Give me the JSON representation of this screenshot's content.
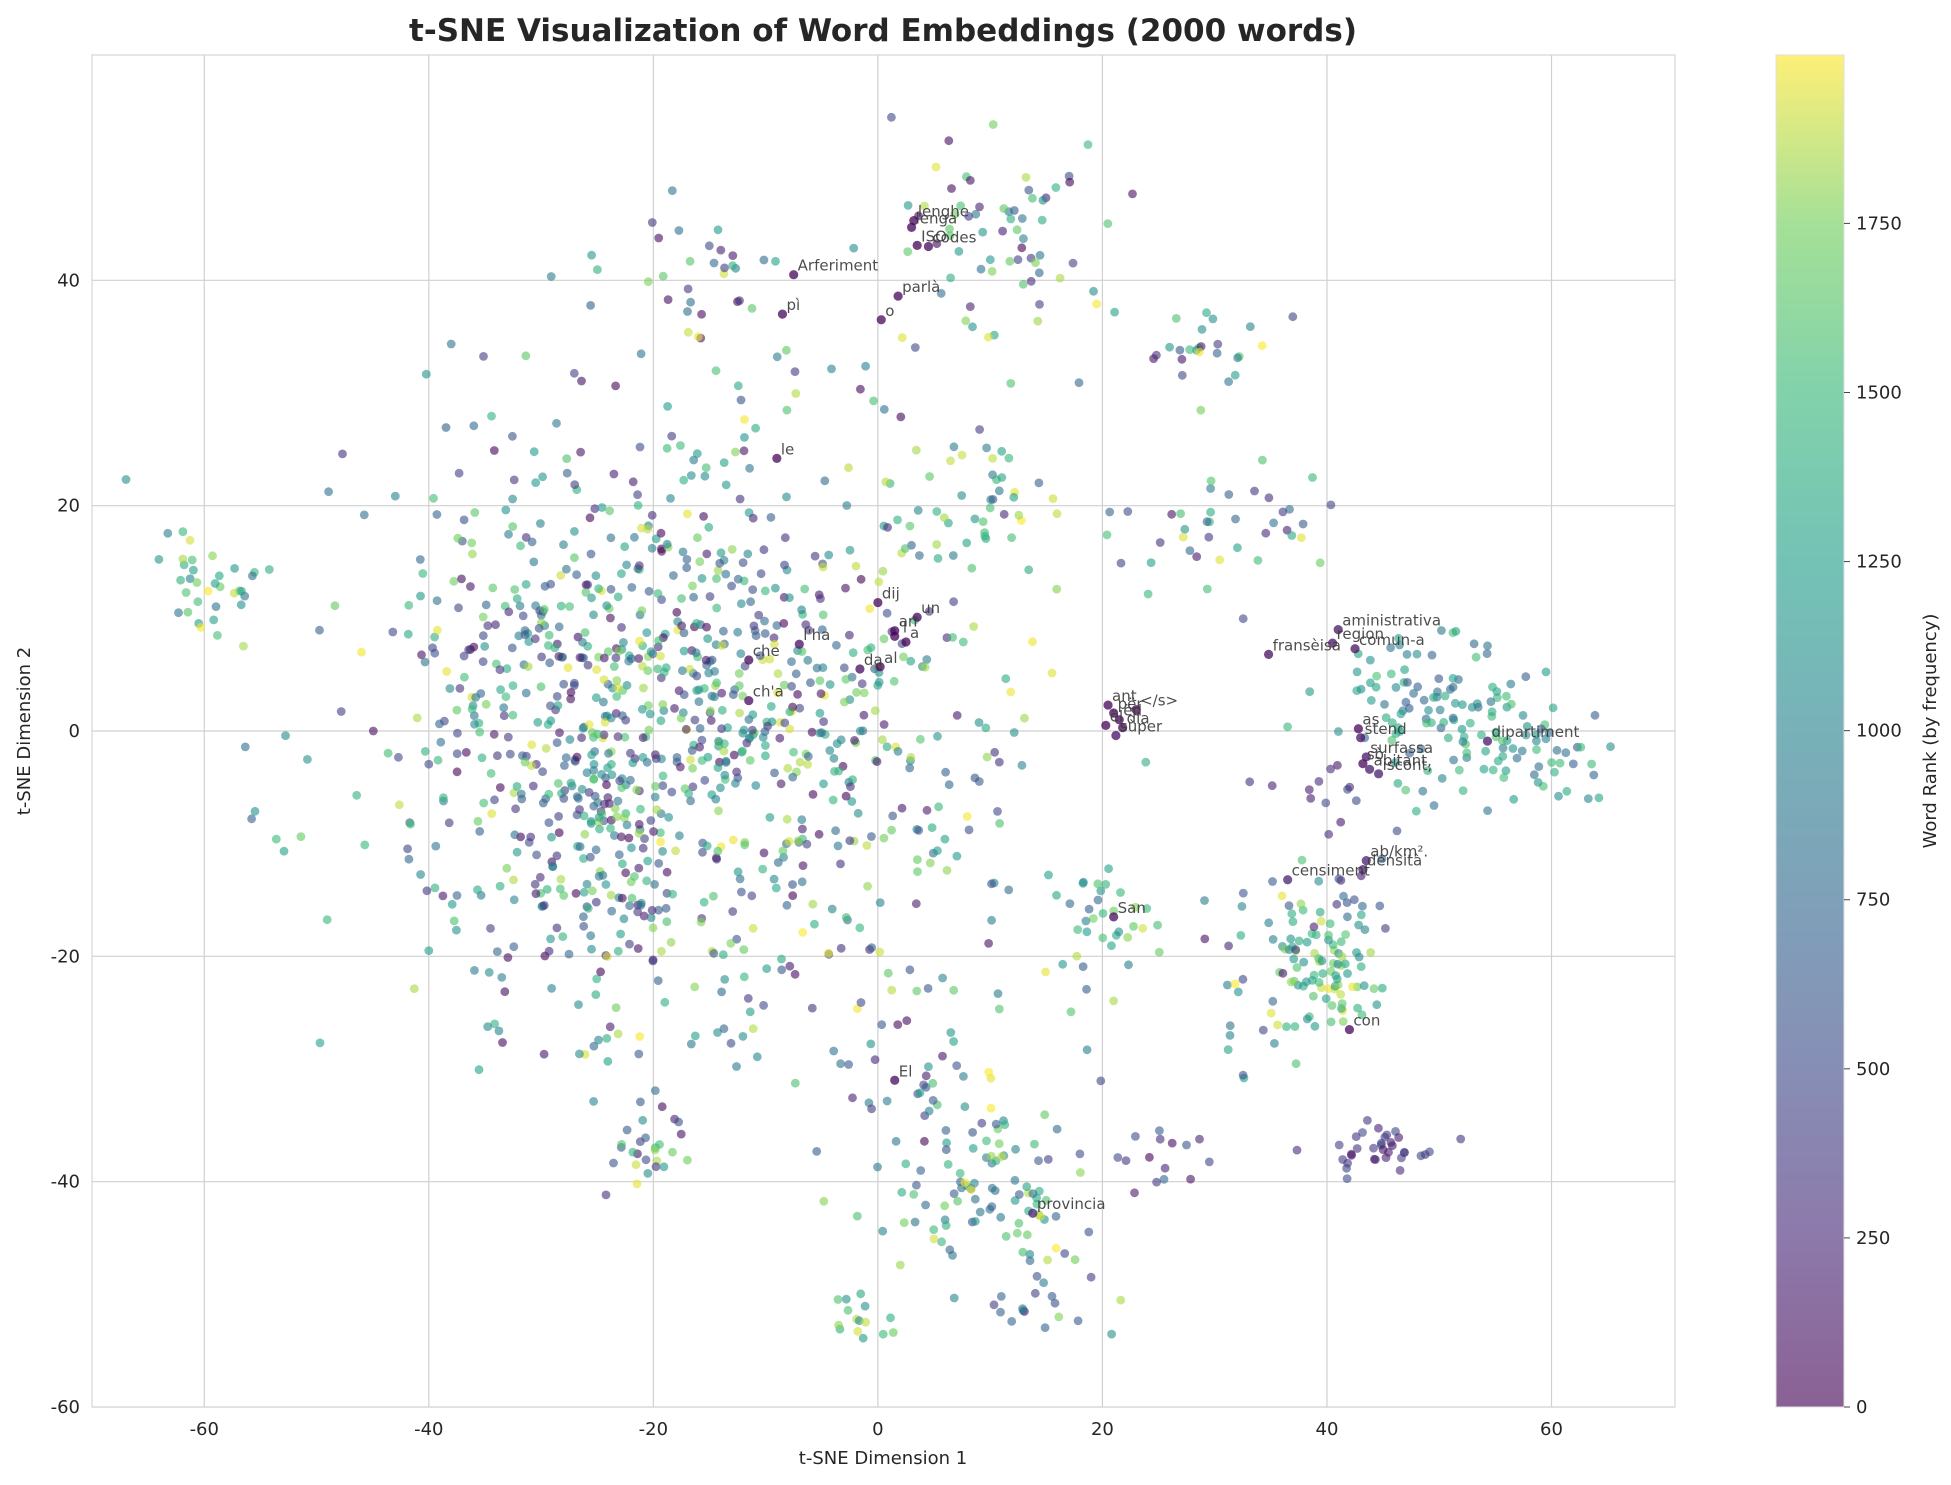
{
  "chart_data": {
    "type": "scatter",
    "title": "t-SNE Visualization of Word Embeddings (2000 words)",
    "xlabel": "t-SNE Dimension 1",
    "ylabel": "t-SNE Dimension 2",
    "xlim": [
      -70,
      71
    ],
    "ylim": [
      -60,
      60
    ],
    "xticks": [
      -60,
      -40,
      -20,
      0,
      20,
      40,
      60
    ],
    "yticks": [
      -60,
      -40,
      -20,
      0,
      20,
      40
    ],
    "grid": true,
    "point_count": 2000,
    "colormap": "viridis",
    "point_alpha": 0.6,
    "colorbar": {
      "label": "Word Rank (by frequency)",
      "range": [
        0,
        1999
      ],
      "ticks": [
        0,
        250,
        500,
        750,
        1000,
        1250,
        1500,
        1750
      ]
    },
    "labeled_points": [
      {
        "word": "Arferiment",
        "x": -7.5,
        "y": 40.5,
        "rank": 30
      },
      {
        "word": "lenghe",
        "x": 3.2,
        "y": 45.3,
        "rank": 20
      },
      {
        "word": "lenga",
        "x": 3.0,
        "y": 44.7,
        "rank": 15
      },
      {
        "word": "ISO",
        "x": 3.5,
        "y": 43.1,
        "rank": 10
      },
      {
        "word": "codes",
        "x": 4.5,
        "y": 43.0,
        "rank": 40
      },
      {
        "word": "parlà",
        "x": 1.8,
        "y": 38.6,
        "rank": 25
      },
      {
        "word": "pì",
        "x": -8.5,
        "y": 37.0,
        "rank": 50
      },
      {
        "word": "o",
        "x": 0.3,
        "y": 36.5,
        "rank": 60
      },
      {
        "word": "le",
        "x": -9.0,
        "y": 24.2,
        "rank": 45
      },
      {
        "word": "dij",
        "x": 0.0,
        "y": 11.4,
        "rank": 35
      },
      {
        "word": "un",
        "x": 3.5,
        "y": 10.1,
        "rank": 30
      },
      {
        "word": "an",
        "x": 1.5,
        "y": 8.9,
        "rank": 20
      },
      {
        "word": "'l",
        "x": 1.5,
        "y": 8.4,
        "rank": 12
      },
      {
        "word": "a",
        "x": 2.5,
        "y": 7.9,
        "rank": 8
      },
      {
        "word": "l'ha",
        "x": -7.0,
        "y": 7.7,
        "rank": 80
      },
      {
        "word": "che",
        "x": -11.5,
        "y": 6.3,
        "rank": 28
      },
      {
        "word": "da",
        "x": -1.6,
        "y": 5.5,
        "rank": 55
      },
      {
        "word": "al",
        "x": 0.2,
        "y": 5.7,
        "rank": 22
      },
      {
        "word": "ch'a",
        "x": -11.5,
        "y": 2.7,
        "rank": 65
      },
      {
        "word": "ant",
        "x": 20.5,
        "y": 2.3,
        "rank": 18
      },
      {
        "word": "për",
        "x": 21.0,
        "y": 1.6,
        "rank": 14
      },
      {
        "word": "</s>",
        "x": 23.0,
        "y": 1.9,
        "rank": 5
      },
      {
        "word": "ëd",
        "x": 21.5,
        "y": 1.0,
        "rank": 6
      },
      {
        "word": "ël",
        "x": 20.3,
        "y": 0.5,
        "rank": 11
      },
      {
        "word": "dla",
        "x": 21.8,
        "y": 0.3,
        "rank": 24
      },
      {
        "word": "sùper",
        "x": 21.2,
        "y": -0.4,
        "rank": 90
      },
      {
        "word": "aministrativa",
        "x": 41.0,
        "y": 9.0,
        "rank": 120
      },
      {
        "word": "region",
        "x": 40.5,
        "y": 7.8,
        "rank": 110
      },
      {
        "word": "comun-a",
        "x": 42.5,
        "y": 7.3,
        "rank": 100
      },
      {
        "word": "fransèisa",
        "x": 34.8,
        "y": 6.8,
        "rank": 95
      },
      {
        "word": "as",
        "x": 42.8,
        "y": 0.2,
        "rank": 40
      },
      {
        "word": "stend",
        "x": 43.0,
        "y": -0.6,
        "rank": 130
      },
      {
        "word": "dipartiment",
        "x": 54.3,
        "y": -0.9,
        "rank": 140
      },
      {
        "word": "surfassa",
        "x": 43.5,
        "y": -2.3,
        "rank": 150
      },
      {
        "word": "sò",
        "x": 43.2,
        "y": -2.9,
        "rank": 35
      },
      {
        "word": "abitant,",
        "x": 43.8,
        "y": -3.4,
        "rank": 160
      },
      {
        "word": "iscont,",
        "x": 44.6,
        "y": -3.8,
        "rank": 170
      },
      {
        "word": "ab/km².",
        "x": 43.5,
        "y": -11.5,
        "rank": 180
      },
      {
        "word": "densità",
        "x": 43.2,
        "y": -12.3,
        "rank": 175
      },
      {
        "word": "censiment",
        "x": 36.5,
        "y": -13.2,
        "rank": 190
      },
      {
        "word": "San",
        "x": 21.0,
        "y": -16.5,
        "rank": 60
      },
      {
        "word": "con",
        "x": 42.0,
        "y": -26.5,
        "rank": 33
      },
      {
        "word": "El",
        "x": 1.5,
        "y": -31.0,
        "rank": 45
      },
      {
        "word": "provincia",
        "x": 13.8,
        "y": -42.8,
        "rank": 200
      }
    ]
  }
}
